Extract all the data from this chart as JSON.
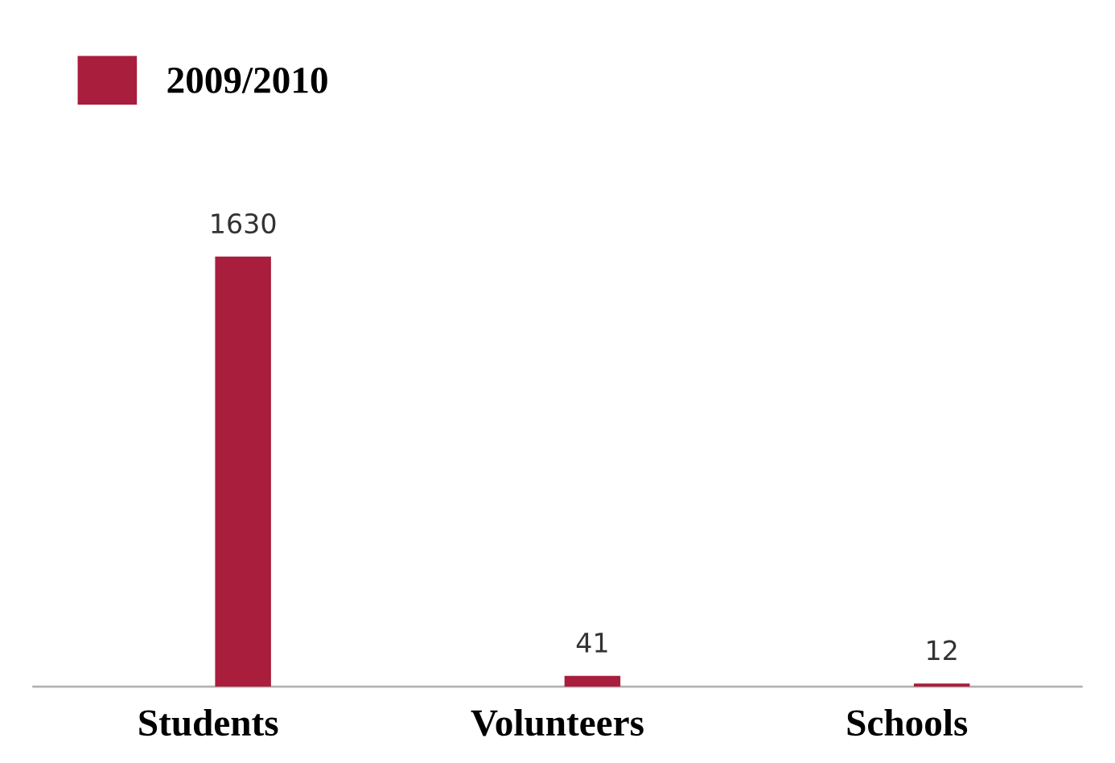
{
  "chart_data": {
    "type": "bar",
    "categories": [
      "Students",
      "Volunteers",
      "Schools"
    ],
    "series": [
      {
        "name": "2009/2010",
        "color": "#a81e3c",
        "values": [
          1630,
          41,
          12
        ]
      }
    ],
    "data_labels": true,
    "legend": "top left",
    "grid": false
  }
}
